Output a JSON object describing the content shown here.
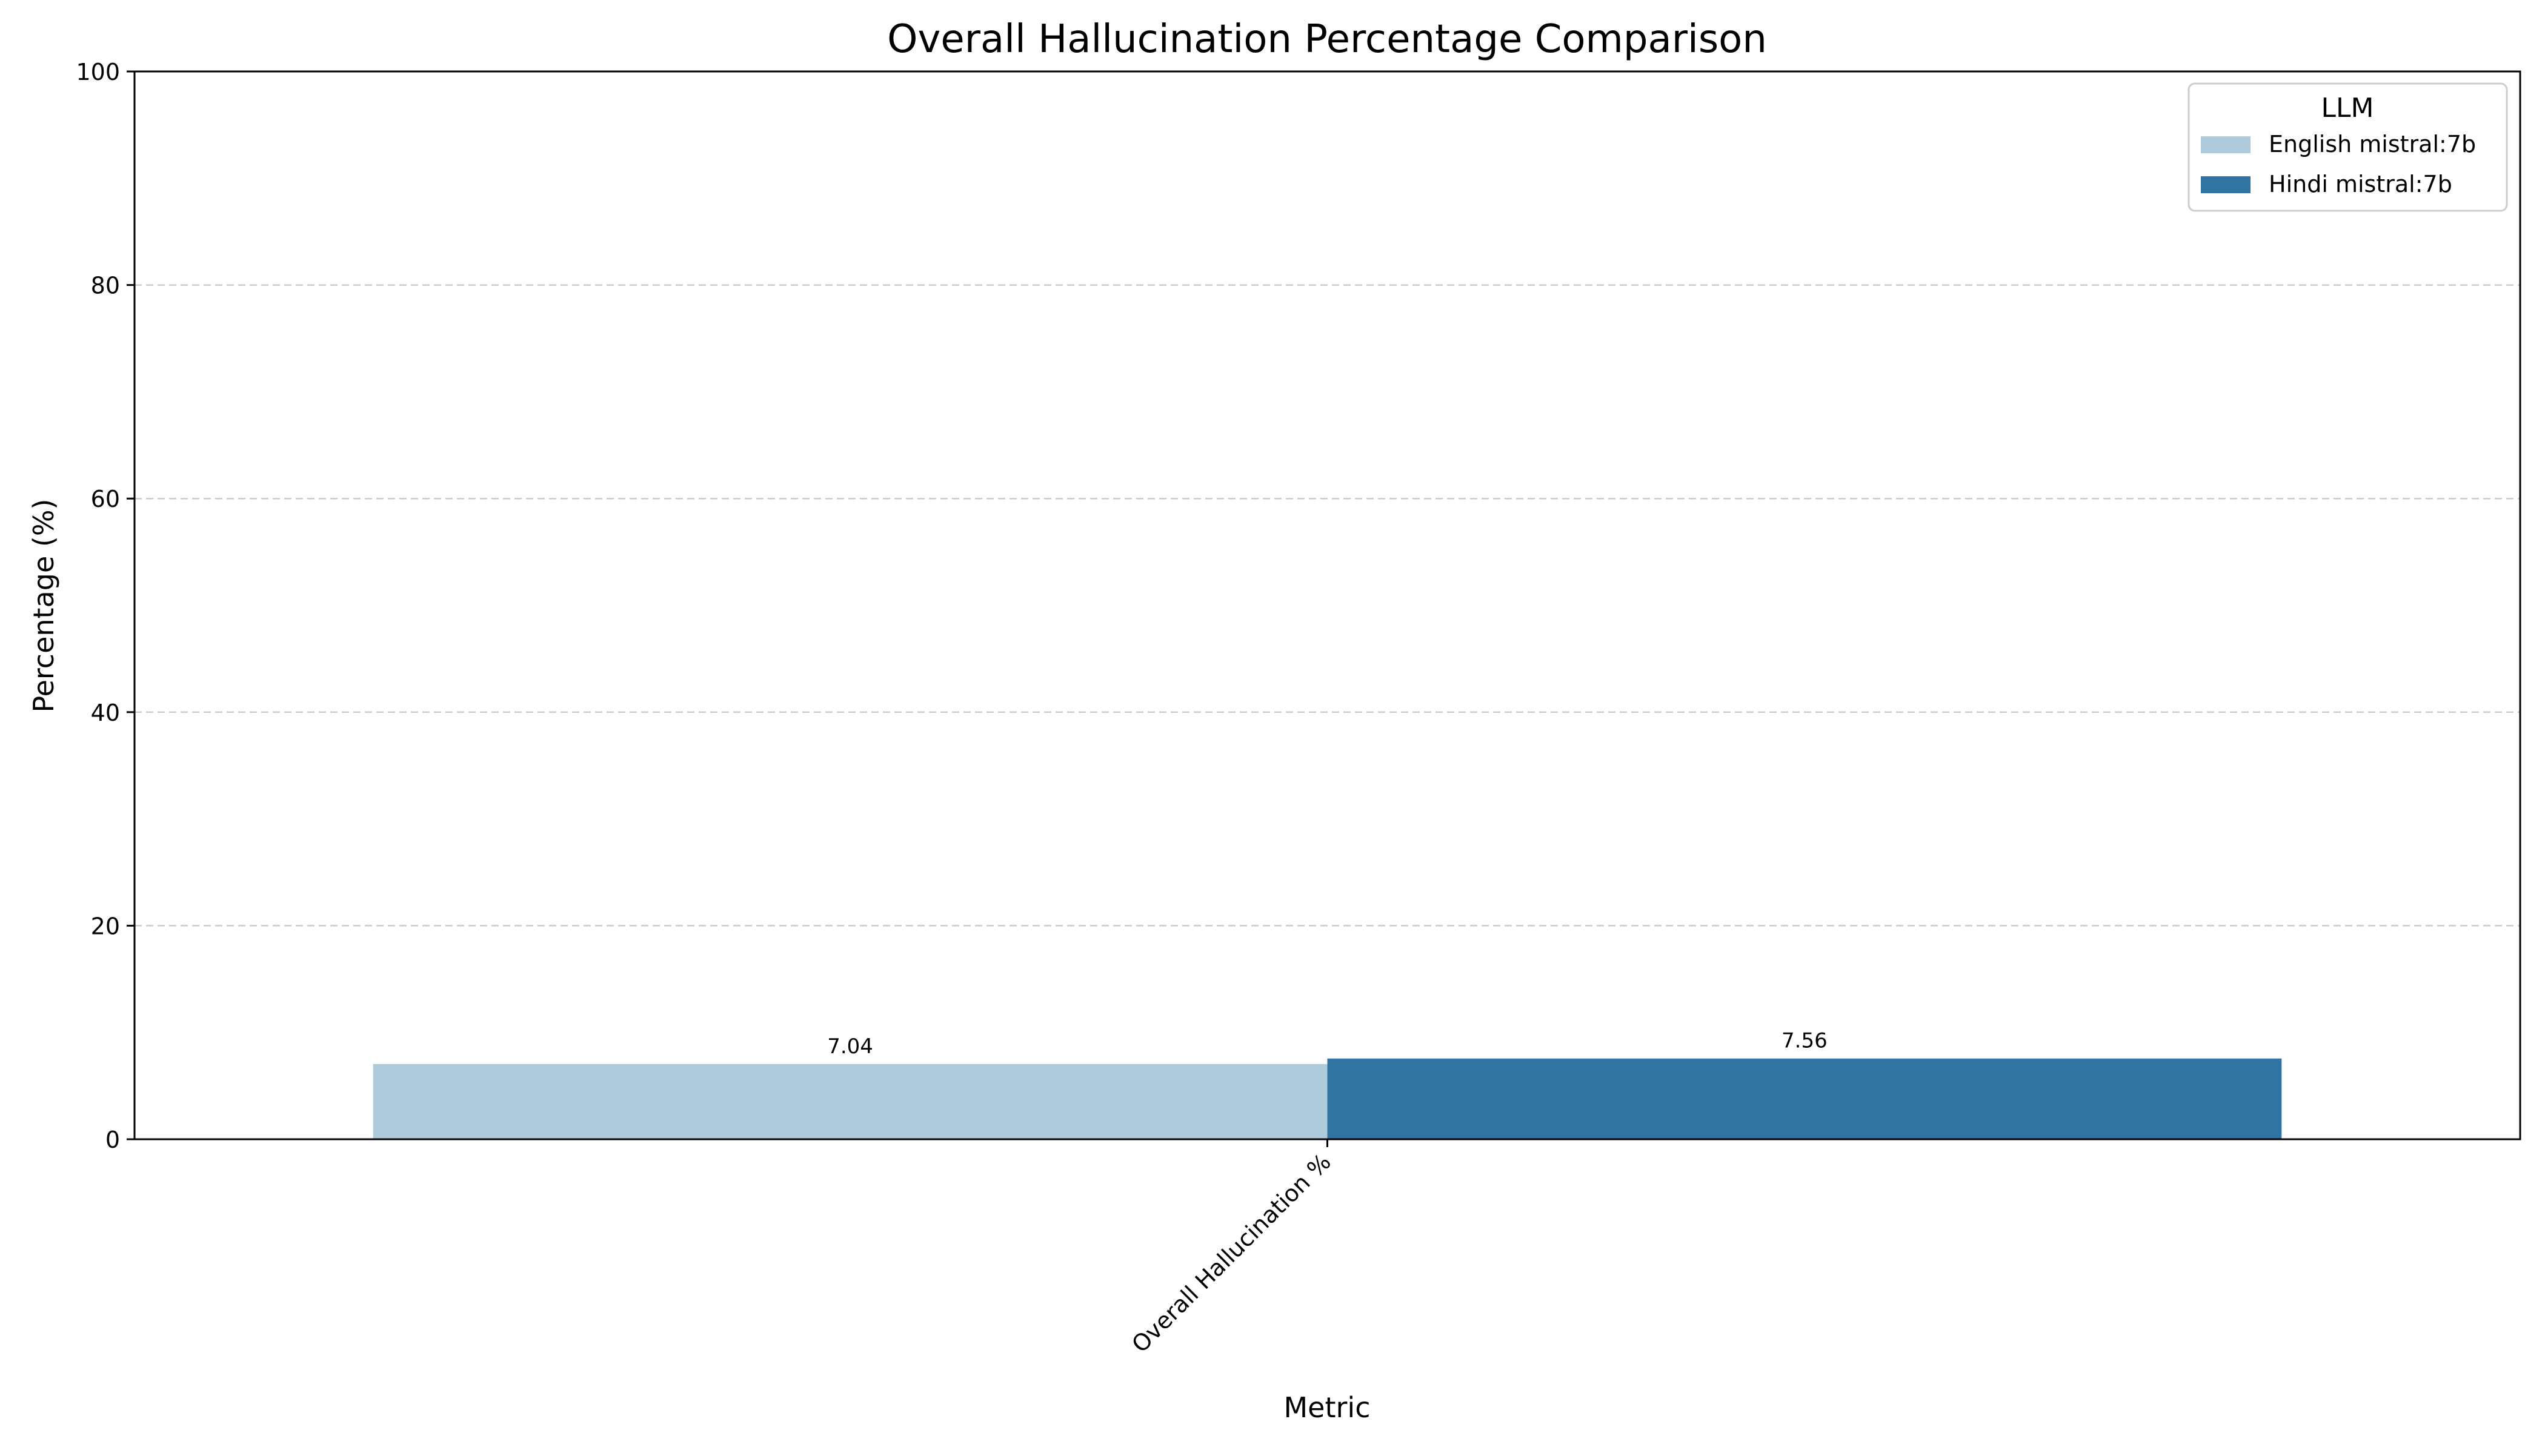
{
  "chart_data": {
    "type": "bar",
    "title": "Overall Hallucination Percentage Comparison",
    "xlabel": "Metric",
    "ylabel": "Percentage (%)",
    "categories": [
      "Overall Hallucination %"
    ],
    "series": [
      {
        "name": "English mistral:7b",
        "values": [
          7.04
        ],
        "color": "#aecbdc"
      },
      {
        "name": "Hindi mistral:7b",
        "values": [
          7.56
        ],
        "color": "#3274a1"
      }
    ],
    "value_labels": [
      "7.04",
      "7.56"
    ],
    "ylim": [
      0,
      100
    ],
    "yticks": [
      0,
      20,
      40,
      60,
      80,
      100
    ],
    "grid": {
      "y": true,
      "x": false,
      "style": "dashed",
      "color": "#cccccc"
    },
    "legend": {
      "title": "LLM",
      "position": "top-right"
    }
  }
}
